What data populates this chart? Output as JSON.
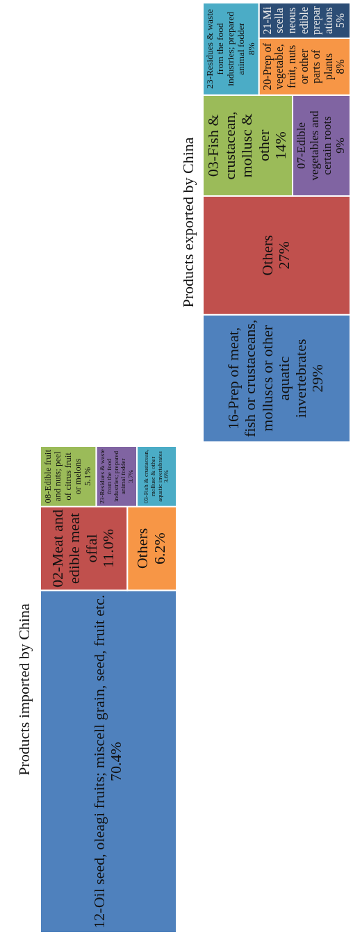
{
  "chart_data": [
    {
      "type": "other",
      "title": "Products imported by China",
      "categories": [
        "12-Oil seed, oleagi fruits; miscell grain, seed, fruit etc.",
        "02-Meat and edible meat offal",
        "Others",
        "08-Edible fruit and nuts; peel of citrus fruit or melons",
        "23-Residues & waste from the food industries; prepared animal fodder",
        "03-Fish & crustacean, mollusc & other aquatic invertebrates"
      ],
      "values": [
        70.4,
        11,
        6.2,
        5.1,
        3.7,
        3.6
      ],
      "value_labels": [
        "70.4%",
        "11.0%",
        "6.2%",
        "5.1%",
        "3.7%",
        "3.6%"
      ],
      "colors": [
        "#4f81bd",
        "#c0504d",
        "#f79646",
        "#9bbb59",
        "#8064a2",
        "#4bacc6"
      ]
    },
    {
      "type": "other",
      "title": "Products exported by China",
      "categories": [
        "16-Prep of meat, fish or crustaceans, molluscs or other aquatic invertebrates",
        "Others",
        "03-Fish & crustacean, mollusc & other",
        "07-Edible vegetables and certain roots",
        "23-Residues & waste from the food industries; prepared animal fodder",
        "20-Prep of vegetable, fruit, nuts or other parts of plants",
        "21-Miscellaneous edible preparations"
      ],
      "values": [
        29,
        27,
        14,
        9,
        8,
        8,
        5
      ],
      "value_labels": [
        "29%",
        "27%",
        "14%",
        "9%",
        "8%",
        "8%",
        "5%"
      ],
      "colors": [
        "#4f81bd",
        "#c0504d",
        "#9bbb59",
        "#8064a2",
        "#4bacc6",
        "#f79646",
        "#2c4d75"
      ]
    }
  ]
}
